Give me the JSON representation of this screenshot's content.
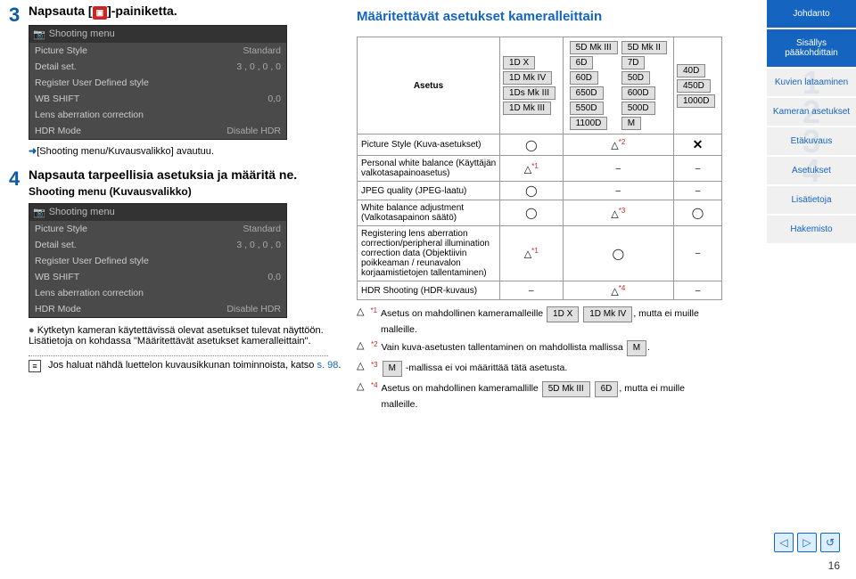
{
  "left": {
    "step3": {
      "num": "3",
      "title_pre": "Napsauta [",
      "title_post": "]-painiketta.",
      "cam_icon": "▣"
    },
    "menu": {
      "header_icon": "📷",
      "header": "Shooting menu",
      "rows": [
        {
          "label": "Picture Style",
          "value": "Standard"
        },
        {
          "label": "Detail set.",
          "value": "3 , 0 , 0 , 0"
        },
        {
          "label": "Register User Defined style",
          "value": ""
        },
        {
          "label": "WB SHIFT",
          "value": "0,0"
        },
        {
          "label": "Lens aberration correction",
          "value": ""
        },
        {
          "label": "HDR Mode",
          "value": "Disable HDR"
        }
      ]
    },
    "step3_note": "[Shooting menu/Kuvausvalikko] avautuu.",
    "step4": {
      "num": "4",
      "title": "Napsauta tarpeellisia asetuksia ja määritä ne.",
      "subtitle": "Shooting menu (Kuvausvalikko)"
    },
    "step4_note": "Kytketyn kameran käytettävissä olevat asetukset tulevat näyttöön. Lisätietoja on kohdassa \"Määritettävät asetukset kameralleittain\".",
    "footer": "Jos haluat nähdä luettelon kuvausikkunan toiminnoista, katso ",
    "footer_link": "s. 98",
    "footer_dot": "."
  },
  "right": {
    "heading": "Määritettävät asetukset kameralleittain",
    "asetus_label": "Asetus",
    "groupA": [
      "1D X",
      "1D Mk IV",
      "1Ds Mk III",
      "1D Mk III"
    ],
    "groupB_col1": [
      "5D Mk III",
      "6D",
      "60D",
      "650D",
      "550D",
      "1100D"
    ],
    "groupB_col2": [
      "5D Mk II",
      "7D",
      "50D",
      "600D",
      "500D",
      "M"
    ],
    "groupC": [
      "40D",
      "450D",
      "1000D"
    ],
    "rows": [
      {
        "label": "Picture Style (Kuva-asetukset)",
        "a": "◯",
        "b": "△",
        "b_sup": "*2",
        "c": "✕"
      },
      {
        "label": "Personal white balance (Käyttäjän valkotasapainoasetus)",
        "a": "△",
        "a_sup": "*1",
        "b": "–",
        "c": "–"
      },
      {
        "label": "JPEG quality (JPEG-laatu)",
        "a": "◯",
        "b": "–",
        "c": "–"
      },
      {
        "label": "White balance adjustment (Valkotasapainon säätö)",
        "a": "◯",
        "b": "△",
        "b_sup": "*3",
        "c": "◯"
      },
      {
        "label": "Registering lens aberration correction/peripheral illumination correction data (Objektiivin poikkeaman / reunavalon korjaamistietojen tallentaminen)",
        "a": "△",
        "a_sup": "*1",
        "b": "◯",
        "c": "–"
      },
      {
        "label": "HDR Shooting (HDR-kuvaus)",
        "a": "–",
        "b": "△",
        "b_sup": "*4",
        "c": "–"
      }
    ],
    "footnotes": {
      "f1": {
        "sup": "*1",
        "pre": "Asetus on mahdollinen kameramalleille ",
        "tags": [
          "1D X",
          "1D Mk IV"
        ],
        "post": ", mutta ei muille malleille."
      },
      "f2": {
        "sup": "*2",
        "pre": "Vain kuva-asetusten tallentaminen on mahdollista mallissa ",
        "tags": [
          "M"
        ],
        "post": "."
      },
      "f3": {
        "sup": "*3",
        "tags": [
          "M"
        ],
        "post": " -mallissa ei voi määrittää tätä asetusta."
      },
      "f4": {
        "sup": "*4",
        "pre": "Asetus on mahdollinen kameramallille ",
        "tags": [
          "5D Mk III",
          "6D"
        ],
        "post": ", mutta ei muille malleille."
      }
    }
  },
  "sidebar": {
    "items": [
      {
        "label": "Johdanto",
        "style": "blue"
      },
      {
        "label": "Sisällys pääkohdittain",
        "style": "blue"
      },
      {
        "label": "Kuvien lataaminen",
        "ghost": "1"
      },
      {
        "label": "Kameran asetukset",
        "ghost": "2"
      },
      {
        "label": "Etäkuvaus",
        "ghost": "3"
      },
      {
        "label": "Asetukset",
        "ghost": "4"
      },
      {
        "label": "Lisätietoja",
        "ghost": ""
      },
      {
        "label": "Hakemisto",
        "ghost": ""
      }
    ]
  },
  "page_number": "16"
}
